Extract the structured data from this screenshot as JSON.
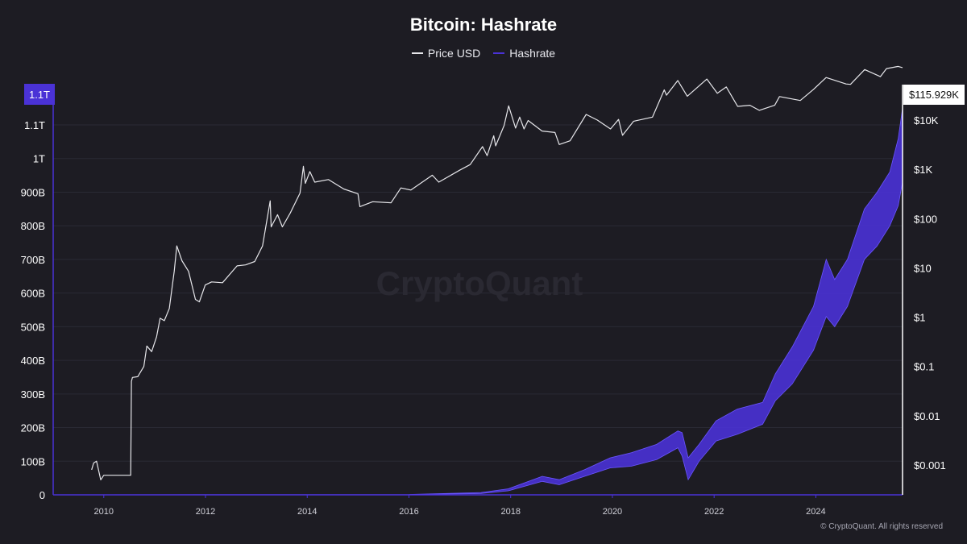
{
  "colors": {
    "background": "#1d1c23",
    "price_line": "#e6e6ea",
    "hashrate": "#4a32d6",
    "hashrate_light": "#6a55ff",
    "axis": "#4a32d6",
    "grid": "#2a2a34",
    "label": "#ffffff"
  },
  "chart_data": {
    "type": "line",
    "title": "Bitcoin: Hashrate",
    "watermark": "CryptoQuant",
    "footer": "© CryptoQuant. All rights reserved",
    "legend": {
      "position": "top-center",
      "items": [
        {
          "label": "Price USD",
          "color": "#e6e6ea"
        },
        {
          "label": "Hashrate",
          "color": "#4a32d6"
        }
      ]
    },
    "x_axis": {
      "type": "date",
      "range": [
        "2009-01-03",
        "2025-09-15"
      ],
      "ticks": [
        "2010",
        "2012",
        "2014",
        "2016",
        "2018",
        "2020",
        "2022",
        "2024"
      ]
    },
    "y_left": {
      "name": "Hashrate",
      "range": [
        0,
        1150000000000
      ],
      "ticks": [
        "0",
        "100B",
        "200B",
        "300B",
        "400B",
        "500B",
        "600B",
        "700B",
        "800B",
        "900B",
        "1T",
        "1.1T"
      ],
      "tick_values": [
        0,
        100000000000,
        200000000000,
        300000000000,
        400000000000,
        500000000000,
        600000000000,
        700000000000,
        800000000000,
        900000000000,
        1000000000000,
        1100000000000
      ],
      "current_label": "1.1T",
      "current_value": 1150000000000
    },
    "y_right": {
      "name": "Price USD",
      "scale": "log",
      "ticks": [
        "$0.001",
        "$0.01",
        "$0.1",
        "$1",
        "$10",
        "$100",
        "$1K",
        "$10K"
      ],
      "tick_values": [
        0.001,
        0.01,
        0.1,
        1,
        10,
        100,
        1000,
        10000
      ],
      "current_label": "$115.929K",
      "current_value": 115929
    },
    "grid": true,
    "series": [
      {
        "name": "Price USD",
        "scale": "right",
        "points": [
          [
            "2009-10-05",
            0.0008
          ],
          [
            "2009-10-20",
            0.0011
          ],
          [
            "2009-11-10",
            0.0012
          ],
          [
            "2009-12-10",
            0.0005
          ],
          [
            "2010-01-01",
            0.00062
          ],
          [
            "2010-07-12",
            0.00062
          ],
          [
            "2010-07-17",
            0.05
          ],
          [
            "2010-07-25",
            0.06
          ],
          [
            "2010-09-01",
            0.062
          ],
          [
            "2010-10-15",
            0.1
          ],
          [
            "2010-11-06",
            0.26
          ],
          [
            "2010-12-10",
            0.2
          ],
          [
            "2011-01-15",
            0.4
          ],
          [
            "2011-02-10",
            0.95
          ],
          [
            "2011-03-10",
            0.85
          ],
          [
            "2011-04-15",
            1.5
          ],
          [
            "2011-05-20",
            8.5
          ],
          [
            "2011-06-08",
            28
          ],
          [
            "2011-07-15",
            14
          ],
          [
            "2011-09-01",
            8.5
          ],
          [
            "2011-10-20",
            2.3
          ],
          [
            "2011-11-18",
            2.05
          ],
          [
            "2011-12-30",
            4.5
          ],
          [
            "2012-02-15",
            5.2
          ],
          [
            "2012-05-01",
            5.0
          ],
          [
            "2012-08-15",
            11
          ],
          [
            "2012-10-15",
            11.5
          ],
          [
            "2012-12-20",
            13.5
          ],
          [
            "2013-02-15",
            28
          ],
          [
            "2013-04-09",
            230
          ],
          [
            "2013-04-16",
            68
          ],
          [
            "2013-06-01",
            120
          ],
          [
            "2013-07-05",
            68
          ],
          [
            "2013-09-01",
            130
          ],
          [
            "2013-11-10",
            330
          ],
          [
            "2013-12-04",
            1150
          ],
          [
            "2013-12-18",
            520
          ],
          [
            "2014-01-20",
            900
          ],
          [
            "2014-02-25",
            550
          ],
          [
            "2014-06-01",
            620
          ],
          [
            "2014-09-20",
            400
          ],
          [
            "2014-12-31",
            320
          ],
          [
            "2015-01-14",
            175
          ],
          [
            "2015-04-15",
            220
          ],
          [
            "2015-08-25",
            210
          ],
          [
            "2015-11-04",
            420
          ],
          [
            "2016-01-15",
            380
          ],
          [
            "2016-06-17",
            760
          ],
          [
            "2016-08-02",
            550
          ],
          [
            "2016-12-31",
            960
          ],
          [
            "2017-03-15",
            1250
          ],
          [
            "2017-06-12",
            2900
          ],
          [
            "2017-07-15",
            1900
          ],
          [
            "2017-09-01",
            4800
          ],
          [
            "2017-09-15",
            3000
          ],
          [
            "2017-11-15",
            7800
          ],
          [
            "2017-12-17",
            19500
          ],
          [
            "2018-02-06",
            6900
          ],
          [
            "2018-03-05",
            11500
          ],
          [
            "2018-04-06",
            6600
          ],
          [
            "2018-05-05",
            9800
          ],
          [
            "2018-08-14",
            6000
          ],
          [
            "2018-11-15",
            5600
          ],
          [
            "2018-12-15",
            3200
          ],
          [
            "2019-03-01",
            3800
          ],
          [
            "2019-06-26",
            13000
          ],
          [
            "2019-09-15",
            10000
          ],
          [
            "2019-12-18",
            6600
          ],
          [
            "2020-02-15",
            10300
          ],
          [
            "2020-03-13",
            4900
          ],
          [
            "2020-06-01",
            9500
          ],
          [
            "2020-10-15",
            11500
          ],
          [
            "2021-01-08",
            41000
          ],
          [
            "2021-01-25",
            32000
          ],
          [
            "2021-04-14",
            63500
          ],
          [
            "2021-06-22",
            30500
          ],
          [
            "2021-11-10",
            68000
          ],
          [
            "2022-01-24",
            35000
          ],
          [
            "2022-03-28",
            47000
          ],
          [
            "2022-06-18",
            19000
          ],
          [
            "2022-09-15",
            20000
          ],
          [
            "2022-11-21",
            15800
          ],
          [
            "2023-03-10",
            20000
          ],
          [
            "2023-04-14",
            30000
          ],
          [
            "2023-09-11",
            25000
          ],
          [
            "2023-12-15",
            42000
          ],
          [
            "2024-03-14",
            73000
          ],
          [
            "2024-08-05",
            54000
          ],
          [
            "2024-09-06",
            53000
          ],
          [
            "2024-12-17",
            106000
          ],
          [
            "2025-04-08",
            76000
          ],
          [
            "2025-05-22",
            111000
          ],
          [
            "2025-08-14",
            123000
          ],
          [
            "2025-09-15",
            115929
          ]
        ]
      },
      {
        "name": "Hashrate",
        "scale": "left",
        "band": [
          [
            "2009-01-03",
            0,
            0
          ],
          [
            "2016-01-01",
            500000000.0,
            900000000.0
          ],
          [
            "2017-06-01",
            4000000000.0,
            7000000000.0
          ],
          [
            "2017-12-15",
            12000000000.0,
            18000000000.0
          ],
          [
            "2018-08-15",
            40000000000.0,
            55000000000.0
          ],
          [
            "2018-12-15",
            30000000000.0,
            45000000000.0
          ],
          [
            "2019-06-15",
            55000000000.0,
            75000000000.0
          ],
          [
            "2019-12-15",
            80000000000.0,
            110000000000.0
          ],
          [
            "2020-05-15",
            85000000000.0,
            125000000000.0
          ],
          [
            "2020-11-15",
            105000000000.0,
            150000000000.0
          ],
          [
            "2021-04-15",
            140000000000.0,
            190000000000.0
          ],
          [
            "2021-05-15",
            115000000000.0,
            185000000000.0
          ],
          [
            "2021-06-28",
            45000000000.0,
            110000000000.0
          ],
          [
            "2021-09-15",
            100000000000.0,
            150000000000.0
          ],
          [
            "2022-01-15",
            160000000000.0,
            220000000000.0
          ],
          [
            "2022-06-15",
            180000000000.0,
            255000000000.0
          ],
          [
            "2022-12-15",
            210000000000.0,
            275000000000.0
          ],
          [
            "2023-03-15",
            280000000000.0,
            360000000000.0
          ],
          [
            "2023-07-15",
            330000000000.0,
            440000000000.0
          ],
          [
            "2023-12-15",
            430000000000.0,
            560000000000.0
          ],
          [
            "2024-03-15",
            530000000000.0,
            700000000000.0
          ],
          [
            "2024-05-15",
            500000000000.0,
            640000000000.0
          ],
          [
            "2024-08-15",
            560000000000.0,
            700000000000.0
          ],
          [
            "2024-12-15",
            700000000000.0,
            850000000000.0
          ],
          [
            "2025-03-15",
            740000000000.0,
            900000000000.0
          ],
          [
            "2025-06-15",
            800000000000.0,
            960000000000.0
          ],
          [
            "2025-08-15",
            860000000000.0,
            1060000000000.0
          ],
          [
            "2025-09-15",
            930000000000.0,
            1150000000000.0
          ]
        ]
      }
    ]
  }
}
